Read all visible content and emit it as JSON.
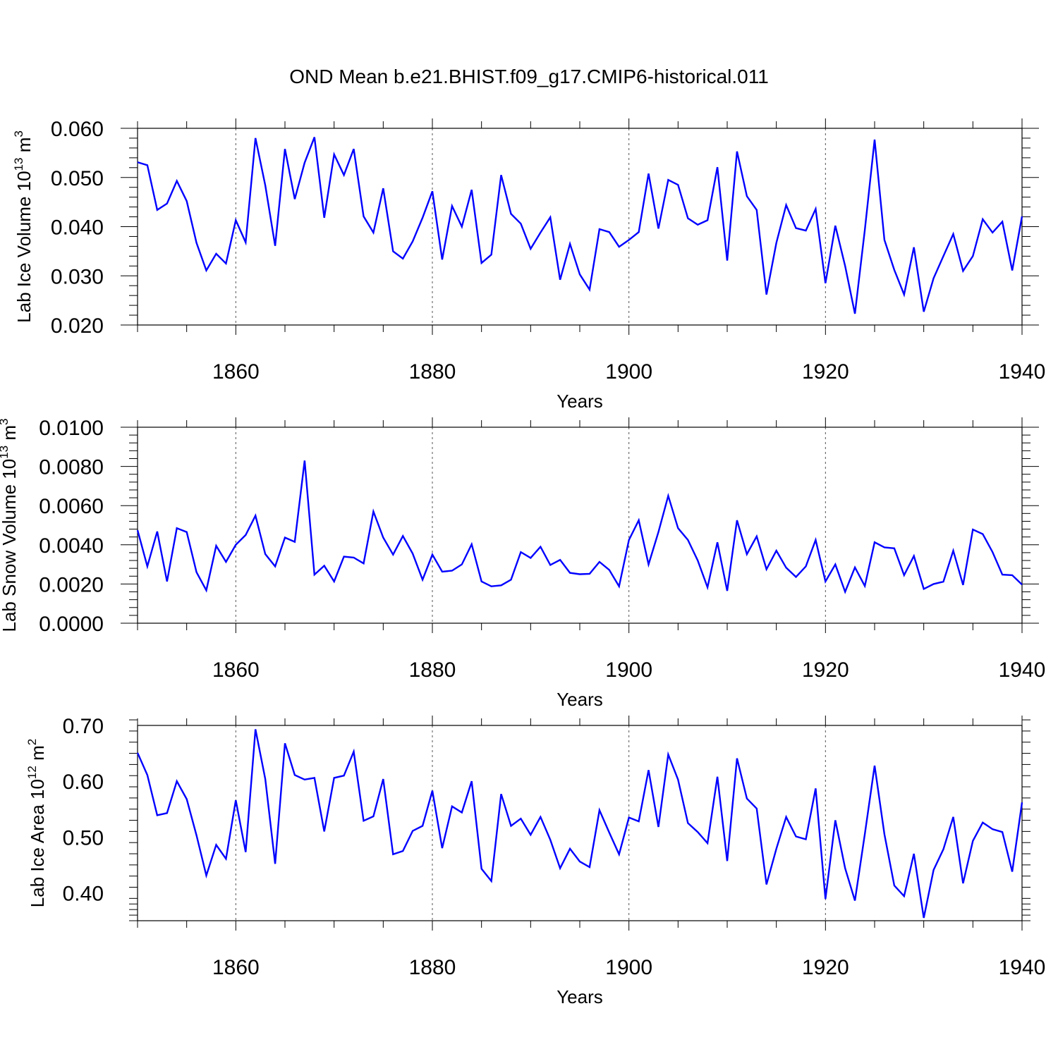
{
  "title": "OND Mean b.e21.BHIST.f09_g17.CMIP6-historical.011",
  "colors": {
    "series": "#0000ff",
    "axes": "#000000",
    "grid": "#555555"
  },
  "chart_data": [
    {
      "type": "line",
      "name": "ice-volume",
      "title": "",
      "xlabel": "Years",
      "ylabel_main": "Lab Ice Volume 10",
      "ylabel_sup": "13",
      "ylabel_unit": " m",
      "ylabel_unit_sup": "3",
      "xlim": [
        1850,
        1940
      ],
      "ylim": [
        0.02,
        0.06
      ],
      "xticks": [
        1860,
        1880,
        1900,
        1920,
        1940
      ],
      "xtick_labels": [
        "1860",
        "1880",
        "1900",
        "1920",
        "1940"
      ],
      "yticks": [
        0.02,
        0.03,
        0.04,
        0.05,
        0.06
      ],
      "ytick_labels": [
        "0.020",
        "0.030",
        "0.040",
        "0.050",
        "0.060"
      ],
      "grid_x": [
        1860,
        1880,
        1900,
        1920
      ],
      "x_start": 1850,
      "values": [
        0.0531,
        0.0525,
        0.0434,
        0.0447,
        0.0493,
        0.0452,
        0.0367,
        0.0311,
        0.0345,
        0.0325,
        0.0413,
        0.0368,
        0.058,
        0.0484,
        0.0361,
        0.0558,
        0.0456,
        0.053,
        0.0582,
        0.0418,
        0.0547,
        0.0505,
        0.0558,
        0.0421,
        0.0388,
        0.0478,
        0.035,
        0.0335,
        0.037,
        0.0418,
        0.0472,
        0.0333,
        0.0442,
        0.04,
        0.0475,
        0.0326,
        0.0343,
        0.0505,
        0.0426,
        0.0406,
        0.0355,
        0.0388,
        0.0419,
        0.0292,
        0.0365,
        0.0303,
        0.0272,
        0.0395,
        0.0389,
        0.0359,
        0.0373,
        0.0389,
        0.0508,
        0.0396,
        0.0495,
        0.0485,
        0.0417,
        0.0404,
        0.0413,
        0.0521,
        0.0331,
        0.0553,
        0.0462,
        0.0434,
        0.0262,
        0.0367,
        0.0444,
        0.0397,
        0.0392,
        0.0436,
        0.0285,
        0.0402,
        0.032,
        0.0223,
        0.0393,
        0.0577,
        0.0373,
        0.0312,
        0.0262,
        0.0358,
        0.0227,
        0.0295,
        0.034,
        0.0385,
        0.031,
        0.034,
        0.0415,
        0.0388,
        0.041,
        0.0311,
        0.0421
      ]
    },
    {
      "type": "line",
      "name": "snow-volume",
      "title": "",
      "xlabel": "Years",
      "ylabel_main": "Lab Snow Volume 10",
      "ylabel_sup": "13",
      "ylabel_unit": " m",
      "ylabel_unit_sup": "3",
      "xlim": [
        1850,
        1940
      ],
      "ylim": [
        0.0,
        0.01
      ],
      "xticks": [
        1860,
        1880,
        1900,
        1920,
        1940
      ],
      "xtick_labels": [
        "1860",
        "1880",
        "1900",
        "1920",
        "1940"
      ],
      "yticks": [
        0.0,
        0.002,
        0.004,
        0.006,
        0.008,
        0.01
      ],
      "ytick_labels": [
        "0.0000",
        "0.0020",
        "0.0040",
        "0.0060",
        "0.0080",
        "0.0100"
      ],
      "grid_x": [
        1860,
        1880,
        1900,
        1920
      ],
      "x_start": 1850,
      "values": [
        0.00475,
        0.0029,
        0.00468,
        0.00213,
        0.00485,
        0.00465,
        0.0026,
        0.00168,
        0.00395,
        0.00313,
        0.004,
        0.0045,
        0.00549,
        0.00353,
        0.0029,
        0.00437,
        0.00415,
        0.0083,
        0.00248,
        0.00293,
        0.00213,
        0.0034,
        0.00335,
        0.00305,
        0.0057,
        0.00437,
        0.0035,
        0.00445,
        0.00355,
        0.00222,
        0.0035,
        0.00263,
        0.00268,
        0.003,
        0.00403,
        0.00213,
        0.00188,
        0.00193,
        0.00222,
        0.00363,
        0.00333,
        0.0039,
        0.00297,
        0.00323,
        0.00257,
        0.0025,
        0.00252,
        0.00313,
        0.00272,
        0.00188,
        0.00425,
        0.00525,
        0.003,
        0.00465,
        0.0065,
        0.00485,
        0.00425,
        0.0032,
        0.00183,
        0.00413,
        0.00165,
        0.00525,
        0.00352,
        0.00443,
        0.00275,
        0.0037,
        0.00283,
        0.00236,
        0.0029,
        0.00425,
        0.00213,
        0.003,
        0.0016,
        0.00285,
        0.0019,
        0.00413,
        0.00387,
        0.00382,
        0.00245,
        0.00343,
        0.00175,
        0.002,
        0.00212,
        0.0037,
        0.00195,
        0.00478,
        0.00455,
        0.00363,
        0.00248,
        0.00245,
        0.00197
      ]
    },
    {
      "type": "line",
      "name": "ice-area",
      "title": "",
      "xlabel": "Years",
      "ylabel_main": "Lab Ice Area 10",
      "ylabel_sup": "12",
      "ylabel_unit": " m",
      "ylabel_unit_sup": "2",
      "xlim": [
        1850,
        1940
      ],
      "ylim": [
        0.35,
        0.7
      ],
      "xticks": [
        1860,
        1880,
        1900,
        1920,
        1940
      ],
      "xtick_labels": [
        "1860",
        "1880",
        "1900",
        "1920",
        "1940"
      ],
      "yticks": [
        0.4,
        0.5,
        0.6,
        0.7
      ],
      "ytick_labels": [
        "0.40",
        "0.50",
        "0.60",
        "0.70"
      ],
      "grid_x": [
        1860,
        1880,
        1900,
        1920
      ],
      "x_start": 1850,
      "values": [
        0.651,
        0.611,
        0.539,
        0.543,
        0.6,
        0.568,
        0.503,
        0.431,
        0.486,
        0.461,
        0.566,
        0.473,
        0.693,
        0.604,
        0.452,
        0.668,
        0.611,
        0.603,
        0.606,
        0.51,
        0.606,
        0.61,
        0.653,
        0.529,
        0.537,
        0.604,
        0.469,
        0.475,
        0.511,
        0.52,
        0.583,
        0.48,
        0.555,
        0.544,
        0.6,
        0.443,
        0.421,
        0.577,
        0.52,
        0.533,
        0.504,
        0.536,
        0.495,
        0.444,
        0.479,
        0.456,
        0.446,
        0.548,
        0.508,
        0.469,
        0.535,
        0.528,
        0.62,
        0.518,
        0.648,
        0.603,
        0.525,
        0.509,
        0.489,
        0.608,
        0.457,
        0.641,
        0.569,
        0.551,
        0.415,
        0.479,
        0.536,
        0.501,
        0.496,
        0.587,
        0.389,
        0.53,
        0.444,
        0.386,
        0.505,
        0.628,
        0.505,
        0.413,
        0.394,
        0.47,
        0.355,
        0.441,
        0.478,
        0.536,
        0.417,
        0.493,
        0.526,
        0.514,
        0.509,
        0.438,
        0.562
      ]
    }
  ]
}
